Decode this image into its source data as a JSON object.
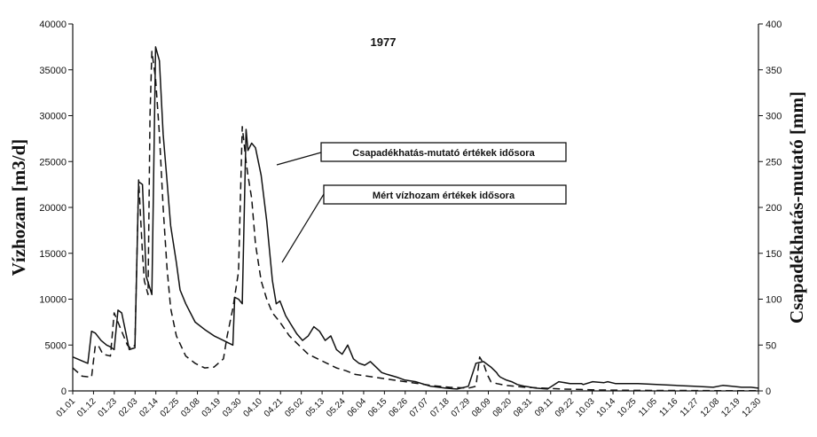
{
  "chart_data": {
    "type": "line",
    "title": "1977",
    "xlabel": "",
    "ylabel_left": "Vízhozam [m3/d]",
    "ylabel_right": "Csapadékhatás-mutató [mm]",
    "ylim_left": [
      0,
      40000
    ],
    "ylim_right": [
      0,
      400
    ],
    "yticks_left": [
      "0",
      "5000",
      "10000",
      "15000",
      "20000",
      "25000",
      "30000",
      "35000",
      "40000"
    ],
    "yticks_right": [
      "0",
      "50",
      "100",
      "150",
      "200",
      "250",
      "300",
      "350",
      "400"
    ],
    "x_ticks": [
      "01.01",
      "01.12",
      "01.23",
      "02.03",
      "02.14",
      "02.25",
      "03.08",
      "03.19",
      "03.30",
      "04.10",
      "04.21",
      "05.02",
      "05.13",
      "05.24",
      "06.04",
      "06.15",
      "06.26",
      "07.07",
      "07.18",
      "07.29",
      "08.09",
      "08.20",
      "08.31",
      "09.11",
      "09.22",
      "10.03",
      "10.14",
      "10.25",
      "11.05",
      "11.16",
      "11.27",
      "12.08",
      "12.19",
      "12.30"
    ],
    "grid": false,
    "series": [
      {
        "name": "Csapadékhatás-mutató értékek idősora",
        "axis": "right",
        "style": "solid",
        "color": "#111111",
        "x": [
          0,
          8,
          10,
          12,
          15,
          18,
          20,
          22,
          24,
          26,
          28,
          30,
          33,
          35,
          37,
          39,
          42,
          44,
          46,
          48,
          50,
          52,
          55,
          57,
          60,
          65,
          70,
          75,
          80,
          85,
          86,
          88,
          90,
          92,
          93,
          95,
          97,
          100,
          103,
          106,
          108,
          110,
          113,
          116,
          119,
          122,
          125,
          128,
          131,
          134,
          137,
          140,
          143,
          146,
          149,
          152,
          155,
          158,
          161,
          164,
          167,
          172,
          176,
          182,
          190,
          198,
          204,
          210,
          214,
          218,
          222,
          225,
          226,
          227,
          230,
          233,
          236,
          240,
          246,
          252,
          258,
          264,
          270,
          271,
          276,
          282,
          284,
          288,
          294,
          300,
          310,
          320,
          330,
          340,
          345,
          350,
          355,
          360,
          364
        ],
        "y": [
          37,
          30,
          65,
          63,
          55,
          50,
          48,
          45,
          88,
          85,
          65,
          45,
          47,
          228,
          225,
          125,
          105,
          375,
          360,
          280,
          230,
          180,
          140,
          110,
          95,
          75,
          67,
          60,
          55,
          50,
          102,
          100,
          95,
          285,
          262,
          270,
          265,
          235,
          185,
          120,
          95,
          98,
          82,
          72,
          62,
          55,
          60,
          70,
          65,
          55,
          60,
          45,
          40,
          50,
          35,
          30,
          28,
          32,
          26,
          20,
          18,
          15,
          12,
          10,
          5,
          3,
          2,
          5,
          30,
          32,
          26,
          20,
          17,
          15,
          12,
          10,
          7,
          5,
          3,
          2,
          10,
          8,
          8,
          7,
          10,
          9,
          10,
          8,
          8,
          8,
          7,
          6,
          5,
          4,
          6,
          5,
          4,
          4,
          3
        ]
      },
      {
        "name": "Mért vízhozam értékek idősora",
        "axis": "left",
        "style": "dashed",
        "color": "#111111",
        "x": [
          0,
          5,
          10,
          12,
          14,
          16,
          20,
          22,
          25,
          27,
          29,
          31,
          33,
          35,
          37,
          38,
          40,
          41,
          42,
          44,
          46,
          48,
          50,
          52,
          55,
          60,
          65,
          70,
          75,
          80,
          82,
          85,
          88,
          90,
          92,
          93,
          95,
          97,
          100,
          103,
          106,
          110,
          115,
          120,
          125,
          130,
          135,
          140,
          145,
          150,
          160,
          170,
          180,
          190,
          200,
          210,
          214,
          216,
          218,
          220,
          222,
          225,
          230,
          240,
          250,
          260,
          270,
          280,
          290,
          300,
          320,
          340,
          364
        ],
        "y": [
          2500,
          1600,
          1500,
          5000,
          4800,
          4000,
          3800,
          8500,
          7000,
          6000,
          5000,
          4600,
          5000,
          23000,
          15000,
          12000,
          10500,
          30000,
          37000,
          34000,
          28000,
          20000,
          13500,
          9000,
          6000,
          3800,
          3000,
          2500,
          2600,
          3500,
          6000,
          9000,
          13000,
          28800,
          25000,
          23500,
          21000,
          16000,
          12000,
          10000,
          8500,
          7500,
          6000,
          5000,
          4000,
          3500,
          3000,
          2500,
          2200,
          1800,
          1500,
          1200,
          900,
          600,
          400,
          300,
          500,
          3700,
          3000,
          1800,
          1000,
          800,
          600,
          400,
          300,
          200,
          150,
          100,
          80,
          60,
          50,
          30,
          20
        ]
      }
    ]
  }
}
